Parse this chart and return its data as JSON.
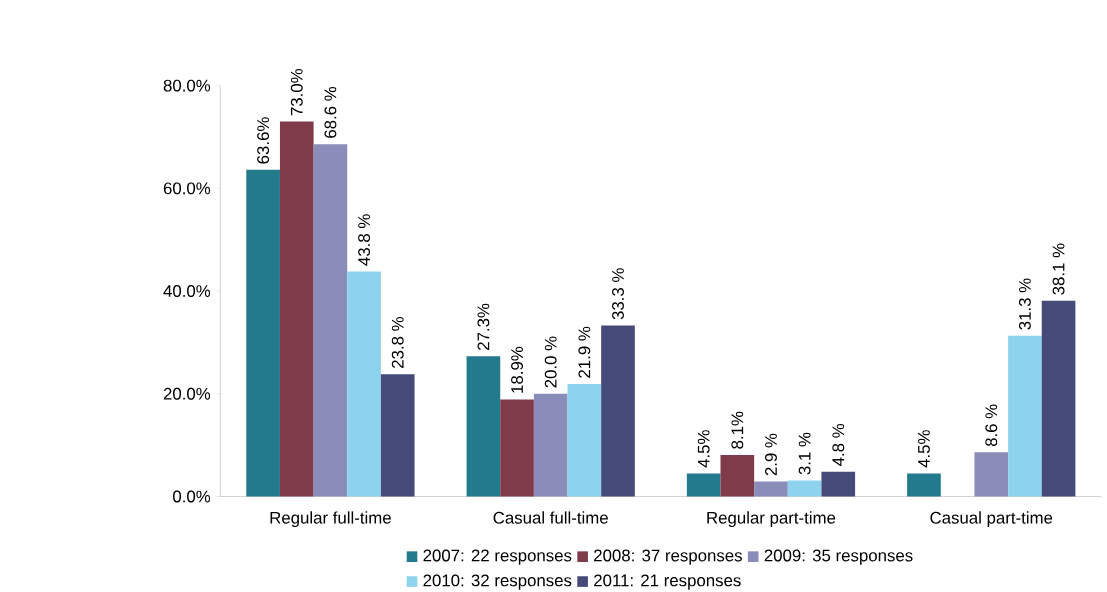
{
  "chart_data": {
    "type": "bar",
    "categories": [
      "Regular full-time",
      "Casual full-time",
      "Regular part-time",
      "Casual part-time"
    ],
    "series": [
      {
        "name": "2007: 22 responses",
        "color": "#227a8c",
        "values": [
          63.6,
          27.3,
          4.5,
          4.5
        ],
        "value_labels": [
          "63.6%",
          "27.3%",
          "4.5%",
          "4.5%"
        ]
      },
      {
        "name": "2008: 37 responses",
        "color": "#7f3b4a",
        "values": [
          73.0,
          18.9,
          8.1,
          null
        ],
        "value_labels": [
          "73.0%",
          "18.9%",
          "8.1%",
          null
        ]
      },
      {
        "name": "2009: 35 responses",
        "color": "#8a8cba",
        "values": [
          68.6,
          20.0,
          2.9,
          8.6
        ],
        "value_labels": [
          "68.6 %",
          "20.0 %",
          "2.9 %",
          "8.6 %"
        ]
      },
      {
        "name": "2010: 32 responses",
        "color": "#8ed3ee",
        "values": [
          43.8,
          21.9,
          3.1,
          31.3
        ],
        "value_labels": [
          "43.8 %",
          "21.9 %",
          "3.1 %",
          "31.3 %"
        ]
      },
      {
        "name": "2011: 21 responses",
        "color": "#464a78",
        "values": [
          23.8,
          33.3,
          4.8,
          38.1
        ],
        "value_labels": [
          "23.8 %",
          "33.3 %",
          "4.8 %",
          "38.1 %"
        ]
      }
    ],
    "ylim": [
      0,
      80
    ],
    "yticks": [
      {
        "value": 0,
        "label": "0.0%"
      },
      {
        "value": 20,
        "label": "20.0%"
      },
      {
        "value": 40,
        "label": "40.0%"
      },
      {
        "value": 60,
        "label": "60.0%"
      },
      {
        "value": 80,
        "label": "80.0%"
      }
    ],
    "legend": "bottom"
  }
}
